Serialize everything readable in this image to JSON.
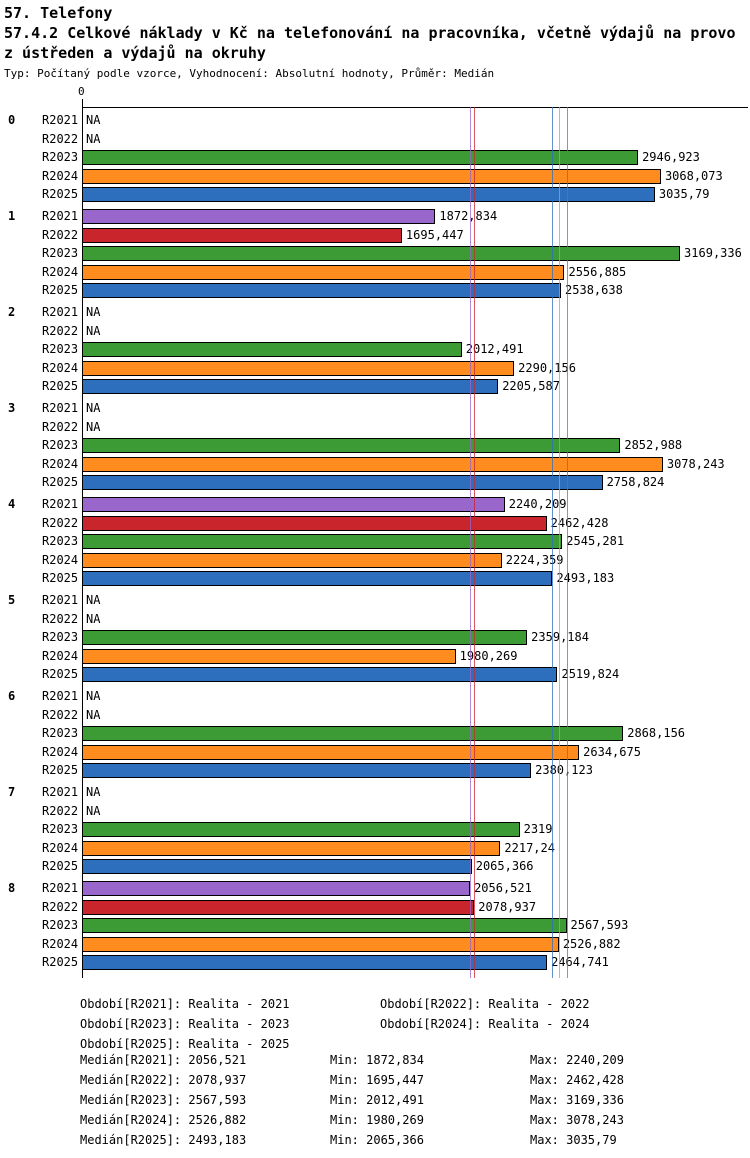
{
  "header": {
    "title": "57. Telefony",
    "subtitle_line1": "57.4.2 Celkové náklady v Kč na telefonování na pracovníka, včetně výdajů na provo",
    "subtitle_line2": "z ústředen a výdajů na okruhy",
    "meta": "Typ: Počítaný podle vzorce, Vyhodnocení: Absolutní hodnoty, Průměr: Medián"
  },
  "chart_data": {
    "type": "bar",
    "orientation": "horizontal",
    "xlim": [
      0,
      3530
    ],
    "grid": false,
    "legend_position": "bottom",
    "axis": {
      "zero_label": "0"
    },
    "series_order": [
      "R2021",
      "R2022",
      "R2023",
      "R2024",
      "R2025"
    ],
    "series_colors": {
      "R2021": "#9966CC",
      "R2022": "#C8252C",
      "R2023": "#3D9B35",
      "R2024": "#FF8C1E",
      "R2025": "#2E6FBD"
    },
    "groups": [
      {
        "label": "0",
        "bars": [
          {
            "series": "R2021",
            "value": null,
            "label": "NA"
          },
          {
            "series": "R2022",
            "value": null,
            "label": "NA"
          },
          {
            "series": "R2023",
            "value": 2946.923,
            "label": "2946,923"
          },
          {
            "series": "R2024",
            "value": 3068.073,
            "label": "3068,073"
          },
          {
            "series": "R2025",
            "value": 3035.79,
            "label": "3035,79"
          }
        ]
      },
      {
        "label": "1",
        "bars": [
          {
            "series": "R2021",
            "value": 1872.834,
            "label": "1872,834"
          },
          {
            "series": "R2022",
            "value": 1695.447,
            "label": "1695,447"
          },
          {
            "series": "R2023",
            "value": 3169.336,
            "label": "3169,336"
          },
          {
            "series": "R2024",
            "value": 2556.885,
            "label": "2556,885"
          },
          {
            "series": "R2025",
            "value": 2538.638,
            "label": "2538,638"
          }
        ]
      },
      {
        "label": "2",
        "bars": [
          {
            "series": "R2021",
            "value": null,
            "label": "NA"
          },
          {
            "series": "R2022",
            "value": null,
            "label": "NA"
          },
          {
            "series": "R2023",
            "value": 2012.491,
            "label": "2012,491"
          },
          {
            "series": "R2024",
            "value": 2290.156,
            "label": "2290,156"
          },
          {
            "series": "R2025",
            "value": 2205.587,
            "label": "2205,587"
          }
        ]
      },
      {
        "label": "3",
        "bars": [
          {
            "series": "R2021",
            "value": null,
            "label": "NA"
          },
          {
            "series": "R2022",
            "value": null,
            "label": "NA"
          },
          {
            "series": "R2023",
            "value": 2852.988,
            "label": "2852,988"
          },
          {
            "series": "R2024",
            "value": 3078.243,
            "label": "3078,243"
          },
          {
            "series": "R2025",
            "value": 2758.824,
            "label": "2758,824"
          }
        ]
      },
      {
        "label": "4",
        "bars": [
          {
            "series": "R2021",
            "value": 2240.209,
            "label": "2240,209"
          },
          {
            "series": "R2022",
            "value": 2462.428,
            "label": "2462,428"
          },
          {
            "series": "R2023",
            "value": 2545.281,
            "label": "2545,281"
          },
          {
            "series": "R2024",
            "value": 2224.359,
            "label": "2224,359"
          },
          {
            "series": "R2025",
            "value": 2493.183,
            "label": "2493,183"
          }
        ]
      },
      {
        "label": "5",
        "bars": [
          {
            "series": "R2021",
            "value": null,
            "label": "NA"
          },
          {
            "series": "R2022",
            "value": null,
            "label": "NA"
          },
          {
            "series": "R2023",
            "value": 2359.184,
            "label": "2359,184"
          },
          {
            "series": "R2024",
            "value": 1980.269,
            "label": "1980,269"
          },
          {
            "series": "R2025",
            "value": 2519.824,
            "label": "2519,824"
          }
        ]
      },
      {
        "label": "6",
        "bars": [
          {
            "series": "R2021",
            "value": null,
            "label": "NA"
          },
          {
            "series": "R2022",
            "value": null,
            "label": "NA"
          },
          {
            "series": "R2023",
            "value": 2868.156,
            "label": "2868,156"
          },
          {
            "series": "R2024",
            "value": 2634.675,
            "label": "2634,675"
          },
          {
            "series": "R2025",
            "value": 2380.123,
            "label": "2380,123"
          }
        ]
      },
      {
        "label": "7",
        "bars": [
          {
            "series": "R2021",
            "value": null,
            "label": "NA"
          },
          {
            "series": "R2022",
            "value": null,
            "label": "NA"
          },
          {
            "series": "R2023",
            "value": 2319,
            "label": "2319"
          },
          {
            "series": "R2024",
            "value": 2217.24,
            "label": "2217,24"
          },
          {
            "series": "R2025",
            "value": 2065.366,
            "label": "2065,366"
          }
        ]
      },
      {
        "label": "8",
        "bars": [
          {
            "series": "R2021",
            "value": 2056.521,
            "label": "2056,521"
          },
          {
            "series": "R2022",
            "value": 2078.937,
            "label": "2078,937"
          },
          {
            "series": "R2023",
            "value": 2567.593,
            "label": "2567,593"
          },
          {
            "series": "R2024",
            "value": 2526.882,
            "label": "2526,882"
          },
          {
            "series": "R2025",
            "value": 2464.741,
            "label": "2464,741"
          }
        ]
      }
    ],
    "medians": {
      "R2021": 2056.521,
      "R2022": 2078.937,
      "R2023": 2567.593,
      "R2024": 2526.882,
      "R2025": 2493.183
    }
  },
  "legend": {
    "items": [
      "Období[R2021]: Realita - 2021",
      "Období[R2022]: Realita - 2022",
      "Období[R2023]: Realita - 2023",
      "Období[R2024]: Realita - 2024",
      "Období[R2025]: Realita - 2025"
    ]
  },
  "stats": {
    "rows": [
      {
        "median": "Medián[R2021]: 2056,521",
        "min": "Min: 1872,834",
        "max": "Max: 2240,209"
      },
      {
        "median": "Medián[R2022]: 2078,937",
        "min": "Min: 1695,447",
        "max": "Max: 2462,428"
      },
      {
        "median": "Medián[R2023]: 2567,593",
        "min": "Min: 2012,491",
        "max": "Max: 3169,336"
      },
      {
        "median": "Medián[R2024]: 2526,882",
        "min": "Min: 1980,269",
        "max": "Max: 3078,243"
      },
      {
        "median": "Medián[R2025]: 2493,183",
        "min": "Min: 2065,366",
        "max": "Max: 3035,79"
      }
    ]
  }
}
